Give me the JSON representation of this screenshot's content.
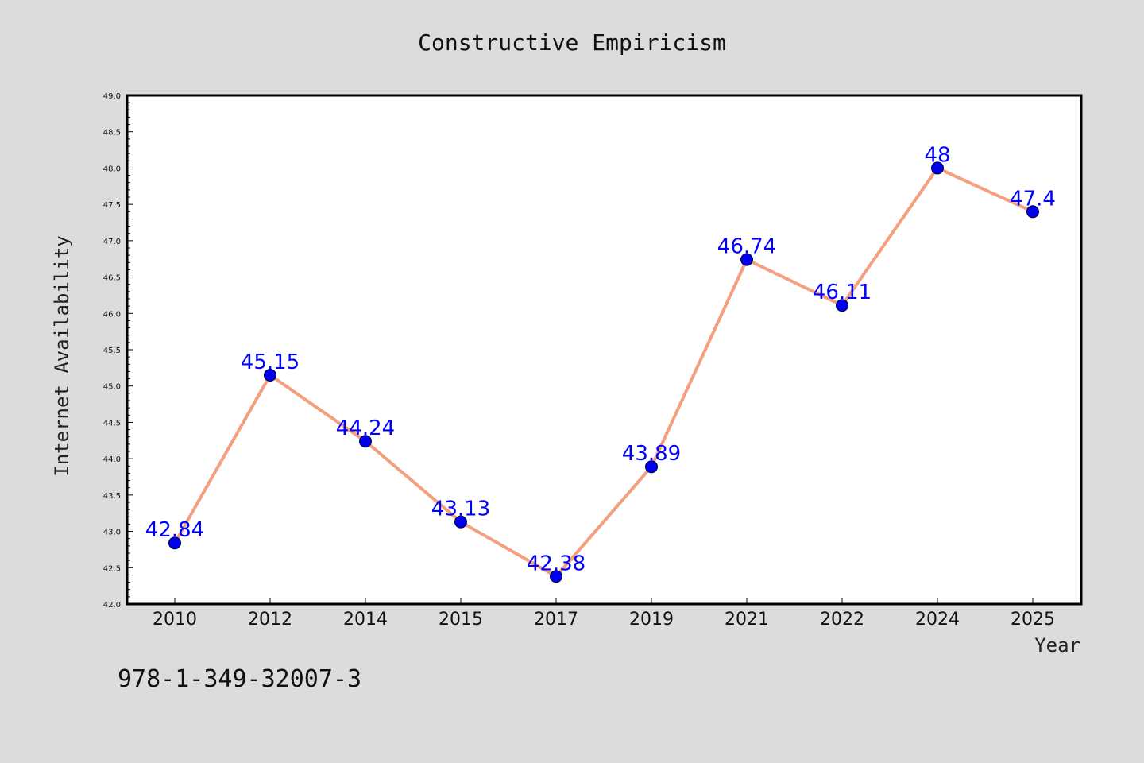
{
  "chart_data": {
    "type": "line",
    "title": "Constructive Empiricism",
    "xlabel": "Year",
    "ylabel": "Internet Availability",
    "categories": [
      "2010",
      "2012",
      "2014",
      "2015",
      "2017",
      "2019",
      "2021",
      "2022",
      "2024",
      "2025"
    ],
    "values": [
      42.84,
      45.15,
      44.24,
      43.13,
      42.38,
      43.89,
      46.74,
      46.11,
      48,
      47.4
    ],
    "data_labels": [
      "42.84",
      "45.15",
      "44.24",
      "43.13",
      "42.38",
      "43.89",
      "46.74",
      "46.11",
      "48",
      "47.4"
    ],
    "ylim": [
      42.0,
      49.0
    ],
    "y_major_ticks": [
      "42.0",
      "42.5",
      "43.0",
      "43.5",
      "44.0",
      "44.5",
      "45.0",
      "45.5",
      "46.0",
      "46.5",
      "47.0",
      "47.5",
      "48.0",
      "48.5",
      "49.0"
    ],
    "grid": false,
    "legend": "none",
    "colors": {
      "line": "#f4a07f",
      "marker": "#0000ee",
      "label": "#0000ff",
      "background": "#dcdcdc",
      "plot_background": "#ffffff"
    }
  },
  "footer": {
    "isbn": "978-1-349-32007-3"
  }
}
